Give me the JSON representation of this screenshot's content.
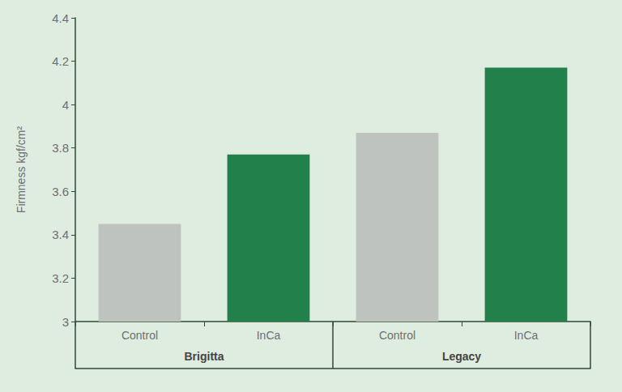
{
  "chart_data": {
    "type": "bar",
    "y_label": "Firmness kgf/cm²",
    "groups": [
      {
        "label": "Brigitta",
        "categories": [
          "Control",
          "InCa"
        ]
      },
      {
        "label": "Legacy",
        "categories": [
          "Control",
          "InCa"
        ]
      }
    ],
    "values": [
      3.45,
      3.77,
      3.87,
      4.17
    ],
    "colors": [
      "#bfc3c0",
      "#22804b",
      "#bfc3c0",
      "#22804b"
    ],
    "ylim": [
      3,
      4.4
    ],
    "yticks": [
      3,
      3.2,
      3.4,
      3.6,
      3.8,
      4,
      4.2,
      4.4
    ],
    "grid": false
  }
}
